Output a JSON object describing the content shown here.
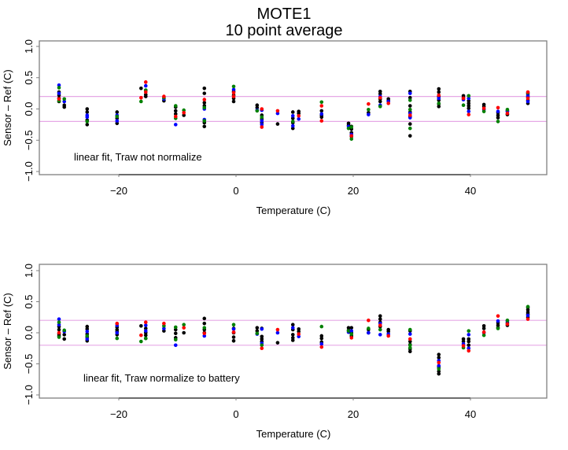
{
  "title": "MOTE1",
  "subtitle": "10 point average",
  "colors": {
    "black": "#000000",
    "blue": "#0000ff",
    "green": "#008000",
    "red": "#ff0000",
    "refline": "#e6a8e6",
    "axis": "#808080"
  },
  "chart_data": [
    {
      "type": "scatter",
      "title": "MOTE1 / 10 point average",
      "xlabel": "Temperature (C)",
      "ylabel": "Sensor – Ref (C)",
      "annotation": "linear fit, Traw not normalize",
      "xlim": [
        -34,
        53
      ],
      "ylim": [
        -1.1,
        1.05
      ],
      "xticks": [
        -20,
        0,
        20,
        40
      ],
      "xtick_labels": [
        "−20",
        "0",
        "20",
        "40"
      ],
      "yticks": [
        -1.0,
        -0.5,
        0.0,
        0.5,
        1.0
      ],
      "ytick_labels": [
        "−1.0",
        "−0.5",
        "0.0",
        "0.5",
        "1.0"
      ],
      "reference_lines": [
        0.2,
        -0.2
      ],
      "series_colors": [
        "black",
        "blue",
        "green",
        "red"
      ],
      "clusters": [
        {
          "x": -30.2,
          "black": [
            0.27,
            0.22,
            0.17,
            0.12
          ],
          "blue": [
            0.38,
            0.25
          ],
          "green": [
            0.34,
            0.13
          ],
          "red": [
            0.16
          ]
        },
        {
          "x": -29.3,
          "black": [
            0.06,
            0.03
          ],
          "blue": [
            0.12
          ],
          "green": [
            0.16
          ],
          "red": []
        },
        {
          "x": -25.4,
          "black": [
            0.0,
            -0.05,
            -0.18,
            -0.25
          ],
          "blue": [
            -0.1,
            -0.13
          ],
          "green": [
            -0.2
          ],
          "red": []
        },
        {
          "x": -20.3,
          "black": [
            -0.05,
            -0.15,
            -0.23
          ],
          "blue": [
            -0.1,
            -0.19
          ],
          "green": [
            -0.12
          ],
          "red": []
        },
        {
          "x": -16.2,
          "black": [
            0.33
          ],
          "blue": [],
          "green": [
            0.12
          ],
          "red": [
            0.18
          ]
        },
        {
          "x": -15.4,
          "black": [
            0.3,
            0.23,
            0.2
          ],
          "blue": [
            0.37
          ],
          "green": [
            0.3
          ],
          "red": [
            0.43,
            0.27
          ]
        },
        {
          "x": -12.3,
          "black": [
            0.13
          ],
          "blue": [
            0.16
          ],
          "green": [
            0.18
          ],
          "red": [
            0.2
          ]
        },
        {
          "x": -10.3,
          "black": [
            0.03,
            -0.03,
            -0.08
          ],
          "blue": [
            -0.25
          ],
          "green": [
            0.05,
            -0.15
          ],
          "red": [
            -0.12
          ]
        },
        {
          "x": -8.9,
          "black": [
            -0.1
          ],
          "blue": [],
          "green": [
            -0.02
          ],
          "red": [
            -0.06
          ]
        },
        {
          "x": -5.4,
          "black": [
            0.33,
            0.25,
            0.1,
            0.05,
            -0.22,
            -0.28
          ],
          "blue": [
            0.0,
            -0.17
          ],
          "green": [
            0.02,
            -0.19
          ],
          "red": [
            0.15
          ]
        },
        {
          "x": -0.4,
          "black": [
            0.28,
            0.22,
            0.17,
            0.12
          ],
          "blue": [
            0.31
          ],
          "green": [
            0.36
          ],
          "red": [
            0.26,
            0.2
          ]
        },
        {
          "x": 3.6,
          "black": [
            0.06,
            0.02
          ],
          "blue": [
            -0.02
          ],
          "green": [
            -0.03
          ],
          "red": []
        },
        {
          "x": 4.4,
          "black": [
            -0.1,
            -0.16,
            -0.22
          ],
          "blue": [
            -0.02,
            -0.19,
            -0.25
          ],
          "green": [
            -0.13
          ],
          "red": [
            0.0,
            -0.29
          ]
        },
        {
          "x": 7.1,
          "black": [
            -0.24
          ],
          "blue": [
            -0.07
          ],
          "green": [],
          "red": [
            -0.03
          ]
        },
        {
          "x": 9.7,
          "black": [
            -0.05,
            -0.15,
            -0.22,
            -0.31
          ],
          "blue": [
            -0.11,
            -0.27
          ],
          "green": [
            -0.2
          ],
          "red": []
        },
        {
          "x": 10.7,
          "black": [
            -0.04,
            -0.07
          ],
          "blue": [
            -0.16
          ],
          "green": [],
          "red": [
            -0.11
          ]
        },
        {
          "x": 14.6,
          "black": [
            -0.03,
            -0.1,
            -0.13
          ],
          "blue": [
            -0.08
          ],
          "green": [
            0.11
          ],
          "red": [
            -0.19,
            0.05
          ]
        },
        {
          "x": 19.2,
          "black": [
            -0.23,
            -0.26
          ],
          "blue": [
            -0.28
          ],
          "green": [
            -0.31
          ],
          "red": []
        },
        {
          "x": 19.7,
          "black": [
            -0.28,
            -0.32,
            -0.38,
            -0.44
          ],
          "blue": [
            -0.41
          ],
          "green": [
            -0.29,
            -0.48
          ],
          "red": [
            -0.43
          ]
        },
        {
          "x": 22.6,
          "black": [
            -0.06
          ],
          "blue": [
            -0.09
          ],
          "green": [
            -0.01
          ],
          "red": [
            0.08
          ]
        },
        {
          "x": 24.6,
          "black": [
            0.28,
            0.24,
            0.16,
            0.12
          ],
          "blue": [
            0.2,
            0.06
          ],
          "green": [
            0.04
          ],
          "red": [
            0.18
          ]
        },
        {
          "x": 26.0,
          "black": [
            0.16,
            0.13
          ],
          "blue": [
            0.12
          ],
          "green": [],
          "red": [
            0.09
          ]
        },
        {
          "x": 29.7,
          "black": [
            0.28,
            0.18,
            0.05,
            -0.05,
            -0.12,
            -0.24,
            -0.43
          ],
          "blue": [
            0.25,
            -0.07,
            -0.14
          ],
          "green": [
            0.14,
            -0.01,
            -0.31
          ],
          "red": [
            -0.1
          ]
        },
        {
          "x": 34.6,
          "black": [
            0.32,
            0.27,
            0.2,
            0.14,
            0.08,
            0.04
          ],
          "blue": [
            0.17
          ],
          "green": [
            0.09
          ],
          "red": [
            0.22
          ]
        },
        {
          "x": 38.8,
          "black": [
            0.21,
            0.18
          ],
          "blue": [
            0.15
          ],
          "green": [
            0.06
          ],
          "red": [
            0.17
          ]
        },
        {
          "x": 39.7,
          "black": [
            0.13,
            0.09,
            0.05,
            0.01
          ],
          "blue": [
            0.17,
            -0.04
          ],
          "green": [
            0.21
          ],
          "red": [
            -0.09
          ]
        },
        {
          "x": 42.3,
          "black": [
            0.07,
            0.04
          ],
          "blue": [
            -0.01
          ],
          "green": [
            -0.04
          ],
          "red": [
            0.01
          ]
        },
        {
          "x": 44.7,
          "black": [
            -0.06,
            -0.1,
            -0.14
          ],
          "blue": [
            -0.04
          ],
          "green": [
            -0.2
          ],
          "red": [
            0.02
          ]
        },
        {
          "x": 46.3,
          "black": [
            -0.03,
            -0.09
          ],
          "blue": [
            -0.04
          ],
          "green": [
            -0.01
          ],
          "red": [
            -0.07
          ]
        },
        {
          "x": 49.8,
          "black": [
            0.24,
            0.19,
            0.14,
            0.09
          ],
          "blue": [
            0.21,
            0.12
          ],
          "green": [
            0.26
          ],
          "red": [
            0.27,
            0.17
          ]
        }
      ]
    },
    {
      "type": "scatter",
      "title": "",
      "xlabel": "Temperature (C)",
      "ylabel": "Sensor – Ref (C)",
      "annotation": "linear fit, Traw normalize to battery",
      "xlim": [
        -34,
        53
      ],
      "ylim": [
        -1.1,
        1.05
      ],
      "xticks": [
        -20,
        0,
        20,
        40
      ],
      "xtick_labels": [
        "−20",
        "0",
        "20",
        "40"
      ],
      "yticks": [
        -1.0,
        -0.5,
        0.0,
        0.5,
        1.0
      ],
      "ytick_labels": [
        "−1.0",
        "−0.5",
        "0.0",
        "0.5",
        "1.0"
      ],
      "reference_lines": [
        0.2,
        -0.2
      ],
      "series_colors": [
        "black",
        "blue",
        "green",
        "red"
      ],
      "clusters": [
        {
          "x": -30.2,
          "black": [
            0.1,
            0.05,
            -0.02,
            -0.05
          ],
          "blue": [
            0.22,
            0.13
          ],
          "green": [
            0.17,
            -0.07
          ],
          "red": [
            0.0
          ]
        },
        {
          "x": -29.3,
          "black": [
            -0.03,
            -0.1
          ],
          "blue": [
            0.02
          ],
          "green": [
            0.04
          ],
          "red": []
        },
        {
          "x": -25.4,
          "black": [
            0.1,
            0.06,
            -0.02,
            -0.07,
            -0.13
          ],
          "blue": [
            0.02,
            -0.1
          ],
          "green": [
            -0.05
          ],
          "red": []
        },
        {
          "x": -20.3,
          "black": [
            0.09,
            0.05,
            0.02,
            -0.03
          ],
          "blue": [
            0.12,
            0.0
          ],
          "green": [
            -0.09
          ],
          "red": [
            0.15
          ]
        },
        {
          "x": -16.2,
          "black": [
            0.11
          ],
          "blue": [],
          "green": [
            -0.14
          ],
          "red": [
            -0.04
          ]
        },
        {
          "x": -15.4,
          "black": [
            0.07,
            0.0,
            -0.04,
            -0.09
          ],
          "blue": [
            0.12,
            0.03
          ],
          "green": [
            -0.09
          ],
          "red": [
            0.17
          ]
        },
        {
          "x": -12.3,
          "black": [
            0.03
          ],
          "blue": [
            0.07
          ],
          "green": [
            0.11
          ],
          "red": [
            0.15
          ]
        },
        {
          "x": -10.3,
          "black": [
            0.05,
            -0.01,
            -0.08
          ],
          "blue": [
            -0.2
          ],
          "green": [
            0.09,
            -0.11
          ],
          "red": []
        },
        {
          "x": -8.9,
          "black": [
            0.0
          ],
          "blue": [],
          "green": [
            0.13
          ],
          "red": [
            0.08
          ]
        },
        {
          "x": -5.4,
          "black": [
            0.23,
            0.15,
            0.05,
            0.0
          ],
          "blue": [
            -0.05
          ],
          "green": [
            0.08
          ],
          "red": [
            -0.01
          ]
        },
        {
          "x": -0.4,
          "black": [
            0.07,
            0.0,
            -0.07,
            -0.13
          ],
          "blue": [
            0.06
          ],
          "green": [
            0.13
          ],
          "red": [
            0.01
          ]
        },
        {
          "x": 3.6,
          "black": [
            0.08,
            0.03
          ],
          "blue": [
            -0.02
          ],
          "green": [
            -0.01
          ],
          "red": []
        },
        {
          "x": 4.4,
          "black": [
            0.07,
            -0.06,
            -0.1,
            -0.14
          ],
          "blue": [
            0.06,
            -0.17
          ],
          "green": [
            -0.2
          ],
          "red": [
            -0.25
          ]
        },
        {
          "x": 7.1,
          "black": [
            -0.16
          ],
          "blue": [
            0.0
          ],
          "green": [],
          "red": [
            0.05
          ]
        },
        {
          "x": 9.7,
          "black": [
            0.13,
            0.05,
            -0.03,
            -0.08,
            -0.12
          ],
          "blue": [
            0.08
          ],
          "green": [],
          "red": []
        },
        {
          "x": 10.7,
          "black": [
            0.06,
            0.02
          ],
          "blue": [
            -0.06
          ],
          "green": [],
          "red": [
            -0.02
          ]
        },
        {
          "x": 14.6,
          "black": [
            -0.05,
            -0.09,
            -0.15
          ],
          "blue": [
            -0.18
          ],
          "green": [
            0.1
          ],
          "red": [
            -0.23
          ]
        },
        {
          "x": 19.2,
          "black": [
            0.08,
            0.04
          ],
          "blue": [
            0.01
          ],
          "green": [
            0.03
          ],
          "red": []
        },
        {
          "x": 19.7,
          "black": [
            0.08,
            0.0,
            -0.05
          ],
          "blue": [
            0.03
          ],
          "green": [
            -0.02
          ],
          "red": [
            -0.08
          ]
        },
        {
          "x": 22.6,
          "black": [
            0.05,
            0.0
          ],
          "blue": [
            0.0
          ],
          "green": [
            0.07
          ],
          "red": [
            0.2
          ]
        },
        {
          "x": 24.6,
          "black": [
            0.27,
            0.22,
            0.17,
            0.1
          ],
          "blue": [
            0.15,
            -0.03
          ],
          "green": [
            0.05
          ],
          "red": [
            0.12
          ]
        },
        {
          "x": 26.0,
          "black": [
            0.05,
            0.02
          ],
          "blue": [
            -0.02
          ],
          "green": [],
          "red": [
            -0.05
          ]
        },
        {
          "x": 29.7,
          "black": [
            0.03,
            -0.14,
            -0.19,
            -0.26,
            -0.3
          ],
          "blue": [
            -0.02
          ],
          "green": [
            0.05,
            -0.2,
            -0.24
          ],
          "red": [
            -0.1
          ]
        },
        {
          "x": 34.6,
          "black": [
            -0.35,
            -0.4,
            -0.55,
            -0.62,
            -0.66
          ],
          "blue": [
            -0.45,
            -0.53
          ],
          "green": [
            -0.58
          ],
          "red": [
            -0.48
          ]
        },
        {
          "x": 38.8,
          "black": [
            -0.1,
            -0.14
          ],
          "blue": [
            -0.18
          ],
          "green": [
            -0.24
          ],
          "red": [
            -0.21
          ]
        },
        {
          "x": 39.7,
          "black": [
            -0.1,
            -0.14,
            -0.2
          ],
          "blue": [
            -0.03,
            -0.25
          ],
          "green": [
            0.03
          ],
          "red": [
            -0.29
          ]
        },
        {
          "x": 42.3,
          "black": [
            0.11,
            0.07
          ],
          "blue": [
            0.0
          ],
          "green": [
            -0.04
          ],
          "red": [
            0.01
          ]
        },
        {
          "x": 44.7,
          "black": [
            0.16,
            0.12,
            0.08
          ],
          "blue": [
            0.19
          ],
          "green": [
            0.07
          ],
          "red": [
            0.27
          ]
        },
        {
          "x": 46.3,
          "black": [
            0.16,
            0.12
          ],
          "blue": [
            0.19
          ],
          "green": [
            0.2
          ],
          "red": [
            0.14
          ]
        },
        {
          "x": 49.8,
          "black": [
            0.41,
            0.37,
            0.33,
            0.3,
            0.25
          ],
          "blue": [
            0.28
          ],
          "green": [
            0.42
          ],
          "red": [
            0.22
          ]
        }
      ]
    }
  ]
}
